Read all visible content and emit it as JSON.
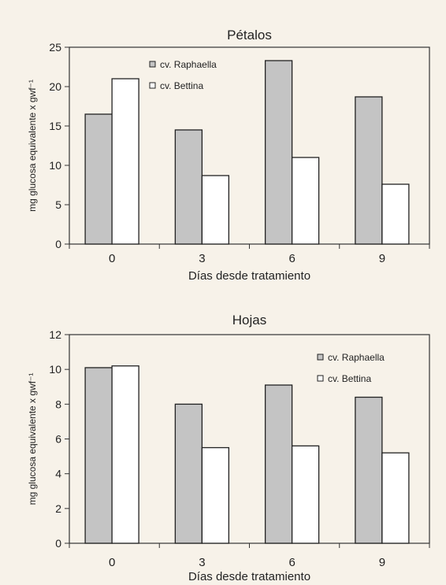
{
  "chart_data": [
    {
      "type": "bar",
      "title": "Pétalos",
      "xlabel": "Días desde tratamiento",
      "ylabel": "mg glucosa equivalente x gwf⁻¹",
      "categories": [
        "0",
        "3",
        "6",
        "9"
      ],
      "ylim": [
        0,
        25
      ],
      "yticks": [
        "0",
        "5",
        "10",
        "15",
        "20",
        "25"
      ],
      "legend_position": "top-left",
      "series": [
        {
          "name": "cv. Raphaella",
          "values": [
            16.5,
            14.5,
            23.3,
            18.7
          ],
          "color": "#c4c4c4"
        },
        {
          "name": "cv. Bettina",
          "values": [
            21.0,
            8.7,
            11.0,
            7.6
          ],
          "color": "#ffffff"
        }
      ]
    },
    {
      "type": "bar",
      "title": "Hojas",
      "xlabel": "Días desde tratamiento",
      "ylabel": "mg glucosa equivalente x gwf⁻¹",
      "categories": [
        "0",
        "3",
        "6",
        "9"
      ],
      "ylim": [
        0,
        12
      ],
      "yticks": [
        "0",
        "2",
        "4",
        "6",
        "8",
        "10",
        "12"
      ],
      "legend_position": "top-right",
      "series": [
        {
          "name": "cv. Raphaella",
          "values": [
            10.1,
            8.0,
            9.1,
            8.4
          ],
          "color": "#c4c4c4"
        },
        {
          "name": "cv. Bettina",
          "values": [
            10.2,
            5.5,
            5.6,
            5.2
          ],
          "color": "#ffffff"
        }
      ]
    }
  ]
}
